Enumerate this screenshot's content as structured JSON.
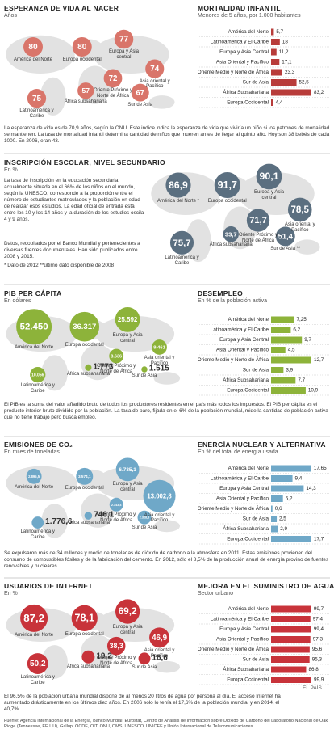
{
  "chart_data": [
    {
      "type": "bubble",
      "title": "ESPERANZA DE VIDA AL NACER",
      "subtitle": "Años",
      "color": "#d9756a",
      "categories": [
        "América del Norte",
        "Europa occidental",
        "Europa y Asia central",
        "Asia oriental y Pacífico",
        "Oriente Próximo y Norte de África",
        "Sur de Asia",
        "África subsahariana",
        "Latinoamérica y Caribe"
      ],
      "values": [
        80,
        80,
        77,
        74,
        72,
        67,
        57,
        75
      ]
    },
    {
      "type": "bar",
      "title": "MORTALIDAD INFANTIL",
      "subtitle": "Menores de 5 años, por 1.000 habitantes",
      "color": "#b83c3a",
      "categories": [
        "América del Norte",
        "Latinoamérica y El Caribe",
        "Europa y Asia Central",
        "Asia Oriental y Pacífico",
        "Oriente Medio y Norte de África",
        "Sur de Asia",
        "África Subsahariana",
        "Europa Occidental"
      ],
      "values": [
        5.7,
        18,
        11.2,
        17.1,
        23.3,
        52.5,
        83.2,
        4.4
      ],
      "value_labels": [
        "5,7",
        "18",
        "11,2",
        "17,1",
        "23,3",
        "52,5",
        "83,2",
        "4,4"
      ]
    },
    {
      "type": "bubble",
      "title": "INSCRIPCIÓN ESCOLAR, NIVEL SECUNDARIO",
      "subtitle": "En %",
      "color": "#5b6f80",
      "categories": [
        "América del Norte *",
        "Europa occidental",
        "Europa y Asia central",
        "Asia oriental y Pacífico",
        "Oriente Próximo y Norte de África",
        "Sur de Asia **",
        "África subsahariana",
        "Latinoamérica y Caribe"
      ],
      "values": [
        86.9,
        91.7,
        90.1,
        78.5,
        71.7,
        51.4,
        33.7,
        75.7
      ],
      "value_labels": [
        "86,9",
        "91,7",
        "90,1",
        "78,5",
        "71,7",
        "51,4",
        "33,7",
        "75,7"
      ]
    },
    {
      "type": "bubble",
      "title": "PIB PER CÁPITA",
      "subtitle": "En dólares",
      "color": "#8db33a",
      "categories": [
        "América del Norte",
        "Europa occidental",
        "Europa y Asia central",
        "Asia oriental y Pacífico",
        "Oriente Próximo y Norte de África",
        "Sur de Asia",
        "África subsahariana",
        "Latinoamérica y Caribe"
      ],
      "values": [
        52450,
        36317,
        25592,
        9461,
        8636,
        1515,
        1773,
        10056
      ],
      "value_labels": [
        "52.450",
        "36.317",
        "25.592",
        "9.461",
        "8.636",
        "1.515",
        "1.773",
        "10.056"
      ]
    },
    {
      "type": "bar",
      "title": "DESEMPLEO",
      "subtitle": "En % de la población activa",
      "color": "#8db33a",
      "categories": [
        "América del Norte",
        "Latinoamérica y El Caribe",
        "Europa y Asia Central",
        "Asia Oriental y Pacífico",
        "Oriente Medio y Norte de África",
        "Sur de Asia",
        "África Subsahariana",
        "Europa Occidental"
      ],
      "values": [
        7.25,
        6.2,
        9.7,
        4.5,
        12.7,
        3.9,
        7.7,
        10.9
      ],
      "value_labels": [
        "7,25",
        "6,2",
        "9,7",
        "4,5",
        "12,7",
        "3,9",
        "7,7",
        "10,9"
      ]
    },
    {
      "type": "bubble",
      "title": "EMISIONES DE CO₂",
      "subtitle": "En miles de toneladas",
      "color": "#6fa8c8",
      "categories": [
        "América del Norte",
        "Europa occidental",
        "Europa y Asia central",
        "Asia oriental y Pacífico",
        "Oriente Próximo y Norte de África",
        "Sur de Asia",
        "África subsahariana",
        "Latinoamérica y Caribe"
      ],
      "values": [
        2895.5,
        3574.1,
        6735.1,
        13002.8,
        2343.4,
        2328.3,
        746.1,
        1776.6
      ],
      "value_labels": [
        "2.895,5",
        "3.574,1",
        "6.735,1",
        "13.002,8",
        "2.343,4",
        "2.328,3",
        "746,1",
        "1.776,6"
      ]
    },
    {
      "type": "bar",
      "title": "ENERGÍA NUCLEAR Y ALTERNATIVA",
      "subtitle": "En % del total de energía usada",
      "color": "#6fa8c8",
      "categories": [
        "América del Norte",
        "Latinoamérica y El Caribe",
        "Europa y Asia Central",
        "Asia Oriental y Pacífico",
        "Oriente Medio y Norte de África",
        "Sur de Asia",
        "África Subsahariana",
        "Europa Occidental"
      ],
      "values": [
        17.65,
        9.4,
        14.3,
        5.2,
        0.6,
        2.5,
        2.9,
        17.7
      ],
      "value_labels": [
        "17,65",
        "9,4",
        "14,3",
        "5,2",
        "0,6",
        "2,5",
        "2,9",
        "17,7"
      ]
    },
    {
      "type": "bubble",
      "title": "USUARIOS DE INTERNET",
      "subtitle": "En %",
      "color": "#c8333a",
      "categories": [
        "América del Norte",
        "Europa occidental",
        "Europa y Asia central",
        "Asia oriental y Pacífico",
        "Oriente Próximo y Norte de África",
        "Sur de Asia",
        "África subsahariana",
        "Latinoamérica y Caribe"
      ],
      "values": [
        87.2,
        78.1,
        69.2,
        46.9,
        38.3,
        16.6,
        19.2,
        50.2
      ],
      "value_labels": [
        "87,2",
        "78,1",
        "69,2",
        "46,9",
        "38,3",
        "16,6",
        "19,2",
        "50,2"
      ]
    },
    {
      "type": "bar",
      "title": "MEJORA EN EL SUMINISTRO DE AGUA",
      "subtitle": "Sector urbano",
      "color": "#c8333a",
      "categories": [
        "América del Norte",
        "Latinoamérica y El Caribe",
        "Europa y Asia Central",
        "Asia Oriental y Pacífico",
        "Oriente Medio y Norte de África",
        "Sur de Asia",
        "África Subsahariana",
        "Europa Occidental"
      ],
      "values": [
        99.7,
        97.4,
        99.4,
        97.3,
        95.6,
        95.3,
        86.8,
        99.9
      ],
      "value_labels": [
        "99,7",
        "97,4",
        "99,4",
        "97,3",
        "95,6",
        "95,3",
        "86,8",
        "99,9"
      ]
    }
  ],
  "notes": [
    "La esperanza de vida es de 70,9 años, según la ONU. Este indice indica la esperanza de vida que viviría un niño si los patrones de mortalidad se mantienen. La tasa de mortalidad infantil determina cantidad de niños que mueren antes de llegar al quinto año. Hoy son 38 bebés de cada 1000. En 2006, eran 43.",
    "La tasa de inscripción en la educación secundaria, actualmente situada en el 66% de los niños en el mundo, según la UNESCO, corresponde a la proporción entre el número de estudiantes matriculados y la población en edad de realizar esos estudios. La edad oficial de entrada está entre los 10 y los 14 años y la duración de los estudios oscila 4 y 9 años.",
    "Datos, recopilados por el Banco Mundial y pertenecientes a diversas fuentes documentales. Han sido publicados entre 2008 y 2015.",
    "* Dato de 2012 **último dato disponible de 2008",
    "El PIB es la suma del valor añadido bruto de todos los productores residentes en el país más todos los impuestos. El PIB per cápita es el producto interior bruto dividido por la población. La tasa de paro, fijada en el 6% de la población mundial, mide la cantidad de población activa que no tiene trabajo pero busca empleo.",
    "Se expulsaron más de 34 millones y medio de toneladas de dióxido de carbono a la atmósfera en 2011. Estas emisiones provienen del consumo de combustibles fósiles y de la fabricación del cemento. En 2012, sólo el 8,5% de la producción anual de energía provino de fuentes renovables y nucleares.",
    "El 96,5% de la población urbana mundial dispone de al menos 20 litros de agua por persona al día. El acceso Internet ha aumentado drásticamente en los últimos diez años. En 2006 solo lo tenía el 17,6% de la población mundial y en 2014, el 40,7%."
  ],
  "source": "Fuente: Agencia Internacional de la Energía, Banco Mundial, Eurostat, Centro de Análisis de Información sobre Dióxido de Carbono del Laboratorio Nacional de Oak Ridge (Tennessee, EE UU), Gallup, OCDE, OIT, ONU, OMS, UNESCO, UNICEF y Unión Internacional de Telecomunicaciones.",
  "brand": "EL PAÍS"
}
